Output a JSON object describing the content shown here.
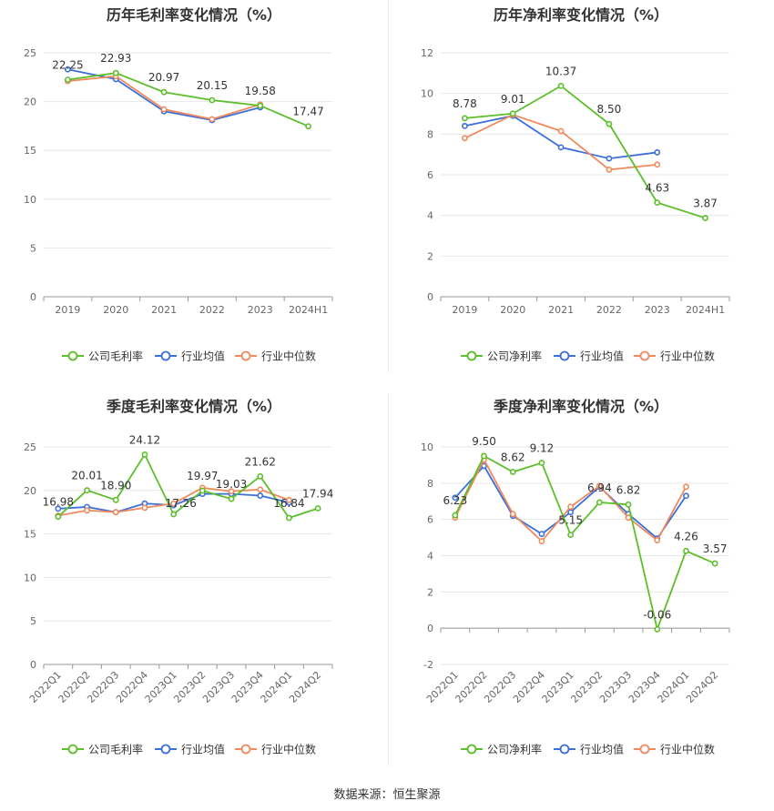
{
  "colors": {
    "company": "#5cbf2a",
    "avg": "#3b6fd9",
    "median": "#f08a5d",
    "grid": "#e6e6e6",
    "axis": "#999999"
  },
  "legend_icon": "circle-line-icon",
  "source_text": "数据来源：恒生聚源",
  "chart_data": [
    {
      "type": "line",
      "title": "历年毛利率变化情况（%）",
      "categories": [
        "2019",
        "2020",
        "2021",
        "2022",
        "2023",
        "2024H1"
      ],
      "ylim": [
        0,
        25
      ],
      "yticks": [
        0,
        5,
        10,
        15,
        20,
        25
      ],
      "grid": true,
      "legend_placement": "bottom",
      "rotate_labels": false,
      "series": [
        {
          "name": "公司毛利率",
          "key": "company",
          "values": [
            22.25,
            22.93,
            20.97,
            20.15,
            19.58,
            17.47
          ],
          "labels": [
            "22.25",
            "22.93",
            "20.97",
            "20.15",
            "19.58",
            "17.47"
          ]
        },
        {
          "name": "行业均值",
          "key": "avg",
          "values": [
            23.3,
            22.3,
            19.0,
            18.1,
            19.4,
            null
          ]
        },
        {
          "name": "行业中位数",
          "key": "median",
          "values": [
            22.1,
            22.6,
            19.2,
            18.2,
            19.7,
            null
          ]
        }
      ]
    },
    {
      "type": "line",
      "title": "历年净利率变化情况（%）",
      "categories": [
        "2019",
        "2020",
        "2021",
        "2022",
        "2023",
        "2024H1"
      ],
      "ylim": [
        0,
        12
      ],
      "yticks": [
        0,
        2,
        4,
        6,
        8,
        10,
        12
      ],
      "grid": true,
      "legend_placement": "bottom",
      "rotate_labels": false,
      "series": [
        {
          "name": "公司净利率",
          "key": "company",
          "values": [
            8.78,
            9.01,
            10.37,
            8.5,
            4.63,
            3.87
          ],
          "labels": [
            "8.78",
            "9.01",
            "10.37",
            "8.50",
            "4.63",
            "3.87"
          ]
        },
        {
          "name": "行业均值",
          "key": "avg",
          "values": [
            8.4,
            8.9,
            7.35,
            6.8,
            7.1,
            null
          ]
        },
        {
          "name": "行业中位数",
          "key": "median",
          "values": [
            7.8,
            8.95,
            8.15,
            6.25,
            6.5,
            null
          ]
        }
      ]
    },
    {
      "type": "line",
      "title": "季度毛利率变化情况（%）",
      "categories": [
        "2022Q1",
        "2022Q2",
        "2022Q3",
        "2022Q4",
        "2023Q1",
        "2023Q2",
        "2023Q3",
        "2023Q4",
        "2024Q1",
        "2024Q2"
      ],
      "ylim": [
        0,
        25
      ],
      "yticks": [
        0,
        5,
        10,
        15,
        20,
        25
      ],
      "grid": true,
      "legend_placement": "bottom",
      "rotate_labels": true,
      "series": [
        {
          "name": "公司毛利率",
          "key": "company",
          "values": [
            16.98,
            20.01,
            18.9,
            24.12,
            17.26,
            19.97,
            19.03,
            21.62,
            16.84,
            17.94
          ],
          "labels": [
            "16.98",
            "20.01",
            "18.90",
            "24.12",
            "17.26",
            "19.97",
            "19.03",
            "21.62",
            "16.84",
            "17.94"
          ]
        },
        {
          "name": "行业均值",
          "key": "avg",
          "values": [
            17.9,
            18.1,
            17.5,
            18.5,
            18.3,
            19.6,
            19.6,
            19.4,
            18.6,
            null
          ]
        },
        {
          "name": "行业中位数",
          "key": "median",
          "values": [
            17.1,
            17.7,
            17.5,
            18.0,
            18.5,
            20.3,
            19.9,
            20.1,
            18.9,
            null
          ]
        }
      ]
    },
    {
      "type": "line",
      "title": "季度净利率变化情况（%）",
      "categories": [
        "2022Q1",
        "2022Q2",
        "2022Q3",
        "2022Q4",
        "2023Q1",
        "2023Q2",
        "2023Q3",
        "2023Q4",
        "2024Q1",
        "2024Q2"
      ],
      "ylim": [
        -2,
        10
      ],
      "yticks": [
        -2,
        0,
        2,
        4,
        6,
        8,
        10
      ],
      "grid": true,
      "legend_placement": "bottom",
      "rotate_labels": true,
      "series": [
        {
          "name": "公司净利率",
          "key": "company",
          "values": [
            6.23,
            9.5,
            8.62,
            9.12,
            5.15,
            6.94,
            6.82,
            -0.06,
            4.26,
            3.57
          ],
          "labels": [
            "6.23",
            "9.50",
            "8.62",
            "9.12",
            "5.15",
            "6.94",
            "6.82",
            "-0.06",
            "4.26",
            "3.57"
          ]
        },
        {
          "name": "行业均值",
          "key": "avg",
          "values": [
            7.2,
            8.95,
            6.2,
            5.2,
            6.4,
            7.8,
            6.3,
            4.95,
            7.3,
            null
          ]
        },
        {
          "name": "行业中位数",
          "key": "median",
          "values": [
            6.1,
            9.3,
            6.3,
            4.8,
            6.7,
            7.85,
            6.1,
            4.85,
            7.8,
            null
          ]
        }
      ]
    }
  ]
}
